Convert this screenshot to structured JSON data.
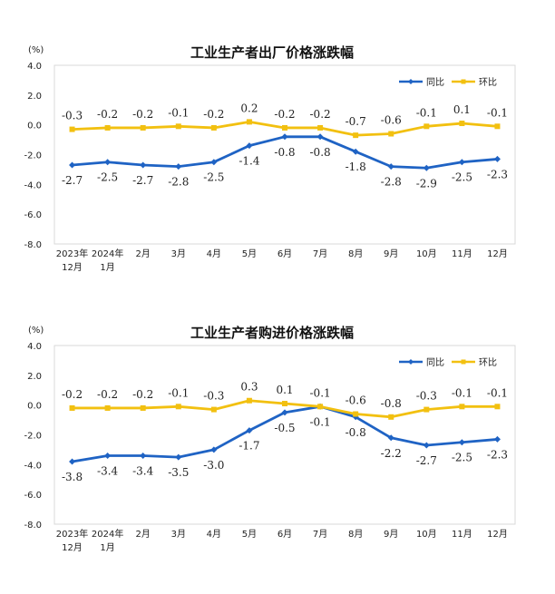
{
  "chart_data": [
    {
      "type": "line",
      "title": "工业生产者出厂价格涨跌幅",
      "unit": "(%)",
      "ylim": [
        -8.0,
        4.0
      ],
      "yticks": [
        "4.0",
        "2.0",
        "0.0",
        "-2.0",
        "-4.0",
        "-6.0",
        "-8.0"
      ],
      "categories": [
        [
          "2023年",
          "12月"
        ],
        [
          "2024年",
          "1月"
        ],
        [
          "2月"
        ],
        [
          "3月"
        ],
        [
          "4月"
        ],
        [
          "5月"
        ],
        [
          "6月"
        ],
        [
          "7月"
        ],
        [
          "8月"
        ],
        [
          "9月"
        ],
        [
          "10月"
        ],
        [
          "11月"
        ],
        [
          "12月"
        ]
      ],
      "series": [
        {
          "name": "同比",
          "color": "#1F63C4",
          "marker": "diamond",
          "values": [
            -2.7,
            -2.5,
            -2.7,
            -2.8,
            -2.5,
            -1.4,
            -0.8,
            -0.8,
            -1.8,
            -2.8,
            -2.9,
            -2.5,
            -2.3
          ],
          "labels": [
            "-2.7",
            "-2.5",
            "-2.7",
            "-2.8",
            "-2.5",
            "-1.4",
            "-0.8",
            "-0.8",
            "-1.8",
            "-2.8",
            "-2.9",
            "-2.5",
            "-2.3"
          ]
        },
        {
          "name": "环比",
          "color": "#F2C010",
          "marker": "square",
          "values": [
            -0.3,
            -0.2,
            -0.2,
            -0.1,
            -0.2,
            0.2,
            -0.2,
            -0.2,
            -0.7,
            -0.6,
            -0.1,
            0.1,
            -0.1
          ],
          "labels": [
            "-0.3",
            "-0.2",
            "-0.2",
            "-0.1",
            "-0.2",
            "0.2",
            "-0.2",
            "-0.2",
            "-0.7",
            "-0.6",
            "-0.1",
            "0.1",
            "-0.1"
          ]
        }
      ],
      "legend_position": "top-right",
      "grid": false
    },
    {
      "type": "line",
      "title": "工业生产者购进价格涨跌幅",
      "unit": "(%)",
      "ylim": [
        -8.0,
        4.0
      ],
      "yticks": [
        "4.0",
        "2.0",
        "0.0",
        "-2.0",
        "-4.0",
        "-6.0",
        "-8.0"
      ],
      "categories": [
        [
          "2023年",
          "12月"
        ],
        [
          "2024年",
          "1月"
        ],
        [
          "2月"
        ],
        [
          "3月"
        ],
        [
          "4月"
        ],
        [
          "5月"
        ],
        [
          "6月"
        ],
        [
          "7月"
        ],
        [
          "8月"
        ],
        [
          "9月"
        ],
        [
          "10月"
        ],
        [
          "11月"
        ],
        [
          "12月"
        ]
      ],
      "series": [
        {
          "name": "同比",
          "color": "#1F63C4",
          "marker": "diamond",
          "values": [
            -3.8,
            -3.4,
            -3.4,
            -3.5,
            -3.0,
            -1.7,
            -0.5,
            -0.1,
            -0.8,
            -2.2,
            -2.7,
            -2.5,
            -2.3
          ],
          "labels": [
            "-3.8",
            "-3.4",
            "-3.4",
            "-3.5",
            "-3.0",
            "-1.7",
            "-0.5",
            "-0.1",
            "-0.8",
            "-2.2",
            "-2.7",
            "-2.5",
            "-2.3"
          ]
        },
        {
          "name": "环比",
          "color": "#F2C010",
          "marker": "square",
          "values": [
            -0.2,
            -0.2,
            -0.2,
            -0.1,
            -0.3,
            0.3,
            0.1,
            -0.1,
            -0.6,
            -0.8,
            -0.3,
            -0.1,
            -0.1
          ],
          "labels": [
            "-0.2",
            "-0.2",
            "-0.2",
            "-0.1",
            "-0.3",
            "0.3",
            "0.1",
            "-0.1",
            "-0.6",
            "-0.8",
            "-0.3",
            "-0.1",
            "-0.1"
          ]
        }
      ],
      "legend_position": "top-right",
      "grid": false
    }
  ]
}
